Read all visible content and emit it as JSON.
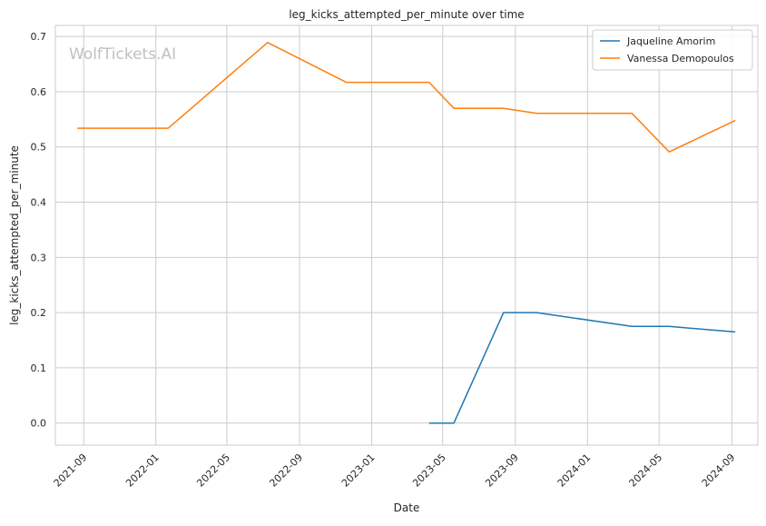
{
  "chart_data": {
    "type": "line",
    "title": "leg_kicks_attempted_per_minute over time",
    "xlabel": "Date",
    "ylabel": "leg_kicks_attempted_per_minute",
    "watermark": "WolfTickets.AI",
    "xlim": [
      "2021-07-15",
      "2024-10-15"
    ],
    "ylim": [
      -0.04,
      0.72
    ],
    "x_ticks": [
      "2021-09-01",
      "2022-01-01",
      "2022-05-01",
      "2022-09-01",
      "2023-01-01",
      "2023-05-01",
      "2023-09-01",
      "2024-01-01",
      "2024-05-01",
      "2024-09-01"
    ],
    "x_tick_labels": [
      "2021-09",
      "2022-01",
      "2022-05",
      "2022-09",
      "2023-01",
      "2023-05",
      "2023-09",
      "2024-01",
      "2024-05",
      "2024-09"
    ],
    "y_ticks": [
      0.0,
      0.1,
      0.2,
      0.3,
      0.4,
      0.5,
      0.6,
      0.7
    ],
    "y_tick_labels": [
      "0.0",
      "0.1",
      "0.2",
      "0.3",
      "0.4",
      "0.5",
      "0.6",
      "0.7"
    ],
    "grid": true,
    "legend_position": "top-right",
    "series": [
      {
        "name": "Jaqueline Amorim",
        "color": "#1f77b4",
        "points": [
          {
            "x": "2023-04-08",
            "y": 0.0
          },
          {
            "x": "2023-05-20",
            "y": 0.0
          },
          {
            "x": "2023-08-12",
            "y": 0.2
          },
          {
            "x": "2023-10-07",
            "y": 0.2
          },
          {
            "x": "2024-03-16",
            "y": 0.175
          },
          {
            "x": "2024-05-18",
            "y": 0.175
          },
          {
            "x": "2024-09-07",
            "y": 0.165
          }
        ]
      },
      {
        "name": "Vanessa Demopoulos",
        "color": "#ff7f0e",
        "points": [
          {
            "x": "2021-08-21",
            "y": 0.534
          },
          {
            "x": "2022-01-22",
            "y": 0.534
          },
          {
            "x": "2022-07-09",
            "y": 0.689
          },
          {
            "x": "2022-11-19",
            "y": 0.617
          },
          {
            "x": "2023-04-08",
            "y": 0.617
          },
          {
            "x": "2023-05-20",
            "y": 0.57
          },
          {
            "x": "2023-08-12",
            "y": 0.57
          },
          {
            "x": "2023-10-07",
            "y": 0.561
          },
          {
            "x": "2024-03-16",
            "y": 0.561
          },
          {
            "x": "2024-05-18",
            "y": 0.491
          },
          {
            "x": "2024-09-07",
            "y": 0.548
          }
        ]
      }
    ]
  }
}
